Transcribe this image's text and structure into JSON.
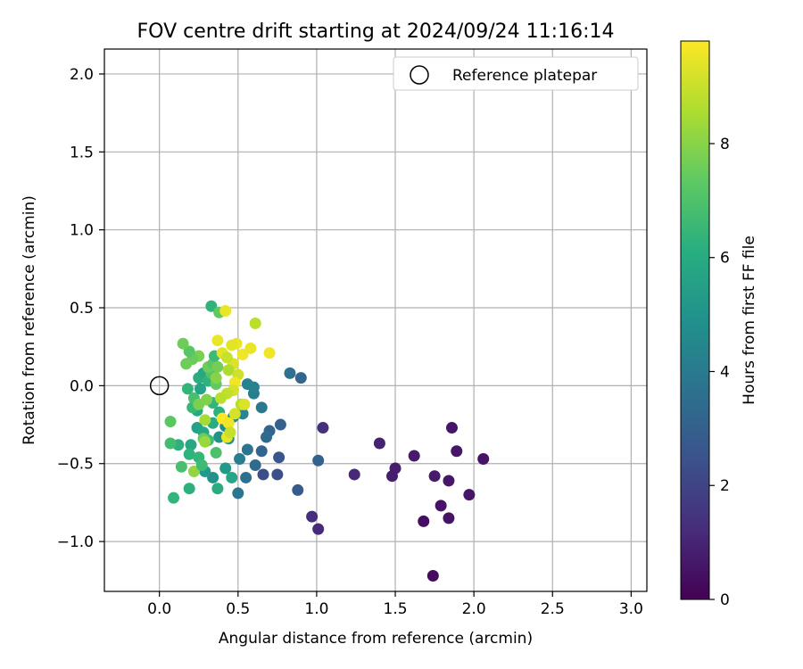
{
  "chart_data": {
    "type": "scatter",
    "title": "FOV centre drift starting at 2024/09/24 11:16:14",
    "xlabel": "Angular distance from reference (arcmin)",
    "ylabel": "Rotation from reference (arcmin)",
    "xlim": [
      -0.35,
      3.1
    ],
    "ylim": [
      -1.32,
      2.16
    ],
    "x_ticks": [
      0.0,
      0.5,
      1.0,
      1.5,
      2.0,
      2.5,
      3.0
    ],
    "x_tick_labels": [
      "0.0",
      "0.5",
      "1.0",
      "1.5",
      "2.0",
      "2.5",
      "3.0"
    ],
    "y_ticks": [
      -1.0,
      -0.5,
      0.0,
      0.5,
      1.0,
      1.5,
      2.0
    ],
    "y_tick_labels": [
      "−1.0",
      "−0.5",
      "0.0",
      "0.5",
      "1.0",
      "1.5",
      "2.0"
    ],
    "grid": true,
    "legend": {
      "placement": "upper right",
      "entries": [
        "Reference platepar"
      ]
    },
    "reference_point": {
      "x": 0.0,
      "y": 0.0,
      "marker": "open-circle"
    },
    "colorbar": {
      "label": "Hours from first FF file",
      "colormap": "viridis",
      "range": [
        0,
        9.8
      ],
      "ticks": [
        0,
        2,
        4,
        6,
        8
      ],
      "tick_labels": [
        "0",
        "2",
        "4",
        "6",
        "8"
      ]
    },
    "points": [
      {
        "x": 1.74,
        "y": -1.22,
        "h": 0.3
      },
      {
        "x": 1.68,
        "y": -0.87,
        "h": 0.4
      },
      {
        "x": 1.84,
        "y": -0.85,
        "h": 0.5
      },
      {
        "x": 1.79,
        "y": -0.77,
        "h": 0.5
      },
      {
        "x": 1.97,
        "y": -0.7,
        "h": 0.6
      },
      {
        "x": 1.84,
        "y": -0.61,
        "h": 0.6
      },
      {
        "x": 1.75,
        "y": -0.58,
        "h": 0.7
      },
      {
        "x": 1.5,
        "y": -0.53,
        "h": 0.8
      },
      {
        "x": 1.48,
        "y": -0.58,
        "h": 0.8
      },
      {
        "x": 1.62,
        "y": -0.45,
        "h": 0.7
      },
      {
        "x": 1.89,
        "y": -0.42,
        "h": 0.6
      },
      {
        "x": 2.06,
        "y": -0.47,
        "h": 0.5
      },
      {
        "x": 1.86,
        "y": -0.27,
        "h": 0.6
      },
      {
        "x": 1.4,
        "y": -0.37,
        "h": 0.9
      },
      {
        "x": 1.24,
        "y": -0.57,
        "h": 1.1
      },
      {
        "x": 1.01,
        "y": -0.92,
        "h": 1.2
      },
      {
        "x": 0.97,
        "y": -0.84,
        "h": 1.3
      },
      {
        "x": 1.04,
        "y": -0.27,
        "h": 1.3
      },
      {
        "x": 1.01,
        "y": -0.48,
        "h": 3.1
      },
      {
        "x": 0.88,
        "y": -0.67,
        "h": 2.8
      },
      {
        "x": 0.75,
        "y": -0.57,
        "h": 2.4
      },
      {
        "x": 0.66,
        "y": -0.57,
        "h": 2.4
      },
      {
        "x": 0.76,
        "y": -0.46,
        "h": 2.6
      },
      {
        "x": 0.9,
        "y": 0.05,
        "h": 3.2
      },
      {
        "x": 0.83,
        "y": 0.08,
        "h": 3.6
      },
      {
        "x": 0.77,
        "y": -0.25,
        "h": 3.0
      },
      {
        "x": 0.7,
        "y": -0.29,
        "h": 3.2
      },
      {
        "x": 0.68,
        "y": -0.33,
        "h": 3.4
      },
      {
        "x": 0.65,
        "y": -0.42,
        "h": 3.2
      },
      {
        "x": 0.61,
        "y": -0.51,
        "h": 3.4
      },
      {
        "x": 0.55,
        "y": -0.59,
        "h": 3.6
      },
      {
        "x": 0.5,
        "y": -0.69,
        "h": 3.8
      },
      {
        "x": 0.56,
        "y": -0.41,
        "h": 3.8
      },
      {
        "x": 0.51,
        "y": -0.47,
        "h": 4.2
      },
      {
        "x": 0.65,
        "y": -0.14,
        "h": 3.9
      },
      {
        "x": 0.6,
        "y": -0.05,
        "h": 4.2
      },
      {
        "x": 0.6,
        "y": -0.01,
        "h": 4.3
      },
      {
        "x": 0.56,
        "y": 0.01,
        "h": 4.4
      },
      {
        "x": 0.53,
        "y": -0.18,
        "h": 4.5
      },
      {
        "x": 0.47,
        "y": -0.2,
        "h": 4.6
      },
      {
        "x": 0.42,
        "y": -0.26,
        "h": 4.7
      },
      {
        "x": 0.38,
        "y": -0.33,
        "h": 4.9
      },
      {
        "x": 0.44,
        "y": -0.34,
        "h": 5.0
      },
      {
        "x": 0.34,
        "y": -0.59,
        "h": 5.0
      },
      {
        "x": 0.29,
        "y": -0.55,
        "h": 5.3
      },
      {
        "x": 0.42,
        "y": -0.53,
        "h": 5.3
      },
      {
        "x": 0.46,
        "y": -0.59,
        "h": 5.8
      },
      {
        "x": 0.37,
        "y": -0.66,
        "h": 6.0
      },
      {
        "x": 0.19,
        "y": -0.66,
        "h": 6.2
      },
      {
        "x": 0.09,
        "y": -0.72,
        "h": 6.4
      },
      {
        "x": 0.14,
        "y": -0.52,
        "h": 6.9
      },
      {
        "x": 0.22,
        "y": -0.55,
        "h": 8.2
      },
      {
        "x": 0.12,
        "y": -0.38,
        "h": 6.2
      },
      {
        "x": 0.07,
        "y": -0.37,
        "h": 6.8
      },
      {
        "x": 0.07,
        "y": -0.23,
        "h": 7.3
      },
      {
        "x": 0.2,
        "y": -0.38,
        "h": 5.9
      },
      {
        "x": 0.19,
        "y": -0.44,
        "h": 6.3
      },
      {
        "x": 0.25,
        "y": -0.46,
        "h": 6.5
      },
      {
        "x": 0.27,
        "y": -0.51,
        "h": 6.7
      },
      {
        "x": 0.24,
        "y": -0.27,
        "h": 5.6
      },
      {
        "x": 0.28,
        "y": -0.3,
        "h": 5.8
      },
      {
        "x": 0.31,
        "y": -0.35,
        "h": 6.7
      },
      {
        "x": 0.28,
        "y": -0.34,
        "h": 7.5
      },
      {
        "x": 0.29,
        "y": -0.36,
        "h": 8.3
      },
      {
        "x": 0.36,
        "y": -0.43,
        "h": 7.0
      },
      {
        "x": 0.34,
        "y": -0.24,
        "h": 6.0
      },
      {
        "x": 0.38,
        "y": -0.17,
        "h": 6.2
      },
      {
        "x": 0.34,
        "y": -0.11,
        "h": 6.4
      },
      {
        "x": 0.24,
        "y": -0.16,
        "h": 5.9
      },
      {
        "x": 0.21,
        "y": -0.14,
        "h": 6.6
      },
      {
        "x": 0.22,
        "y": -0.08,
        "h": 6.9
      },
      {
        "x": 0.25,
        "y": -0.12,
        "h": 7.8
      },
      {
        "x": 0.18,
        "y": -0.02,
        "h": 6.4
      },
      {
        "x": 0.25,
        "y": 0.05,
        "h": 6.1
      },
      {
        "x": 0.28,
        "y": 0.08,
        "h": 5.9
      },
      {
        "x": 0.31,
        "y": 0.03,
        "h": 6.3
      },
      {
        "x": 0.26,
        "y": -0.02,
        "h": 5.7
      },
      {
        "x": 0.3,
        "y": -0.09,
        "h": 7.9
      },
      {
        "x": 0.33,
        "y": 0.08,
        "h": 7.1
      },
      {
        "x": 0.36,
        "y": 0.01,
        "h": 7.4
      },
      {
        "x": 0.36,
        "y": 0.05,
        "h": 8.0
      },
      {
        "x": 0.31,
        "y": 0.12,
        "h": 7.6
      },
      {
        "x": 0.34,
        "y": 0.14,
        "h": 7.3
      },
      {
        "x": 0.37,
        "y": 0.12,
        "h": 7.7
      },
      {
        "x": 0.35,
        "y": 0.19,
        "h": 6.7
      },
      {
        "x": 0.25,
        "y": 0.19,
        "h": 7.8
      },
      {
        "x": 0.21,
        "y": 0.17,
        "h": 7.5
      },
      {
        "x": 0.19,
        "y": 0.22,
        "h": 7.2
      },
      {
        "x": 0.17,
        "y": 0.14,
        "h": 7.6
      },
      {
        "x": 0.15,
        "y": 0.27,
        "h": 7.6
      },
      {
        "x": 0.33,
        "y": 0.51,
        "h": 6.3
      },
      {
        "x": 0.38,
        "y": 0.47,
        "h": 7.4
      },
      {
        "x": 0.42,
        "y": 0.48,
        "h": 9.5
      },
      {
        "x": 0.61,
        "y": 0.4,
        "h": 8.8
      },
      {
        "x": 0.7,
        "y": 0.21,
        "h": 9.6
      },
      {
        "x": 0.58,
        "y": 0.24,
        "h": 9.5
      },
      {
        "x": 0.53,
        "y": 0.2,
        "h": 9.6
      },
      {
        "x": 0.49,
        "y": 0.27,
        "h": 9.5
      },
      {
        "x": 0.46,
        "y": 0.26,
        "h": 9.4
      },
      {
        "x": 0.37,
        "y": 0.29,
        "h": 9.5
      },
      {
        "x": 0.4,
        "y": 0.21,
        "h": 9.4
      },
      {
        "x": 0.47,
        "y": 0.14,
        "h": 9.3
      },
      {
        "x": 0.43,
        "y": 0.18,
        "h": 9.0
      },
      {
        "x": 0.44,
        "y": 0.1,
        "h": 8.6
      },
      {
        "x": 0.5,
        "y": 0.07,
        "h": 9.1
      },
      {
        "x": 0.48,
        "y": 0.02,
        "h": 9.6
      },
      {
        "x": 0.47,
        "y": -0.03,
        "h": 9.2
      },
      {
        "x": 0.43,
        "y": -0.05,
        "h": 8.9
      },
      {
        "x": 0.39,
        "y": -0.08,
        "h": 8.8
      },
      {
        "x": 0.52,
        "y": -0.12,
        "h": 8.7
      },
      {
        "x": 0.54,
        "y": -0.12,
        "h": 9.3
      },
      {
        "x": 0.4,
        "y": -0.21,
        "h": 9.8
      },
      {
        "x": 0.44,
        "y": -0.24,
        "h": 9.6
      },
      {
        "x": 0.48,
        "y": -0.18,
        "h": 9.2
      },
      {
        "x": 0.43,
        "y": -0.33,
        "h": 9.5
      },
      {
        "x": 0.45,
        "y": -0.3,
        "h": 9.0
      },
      {
        "x": 0.29,
        "y": -0.22,
        "h": 8.5
      }
    ]
  }
}
